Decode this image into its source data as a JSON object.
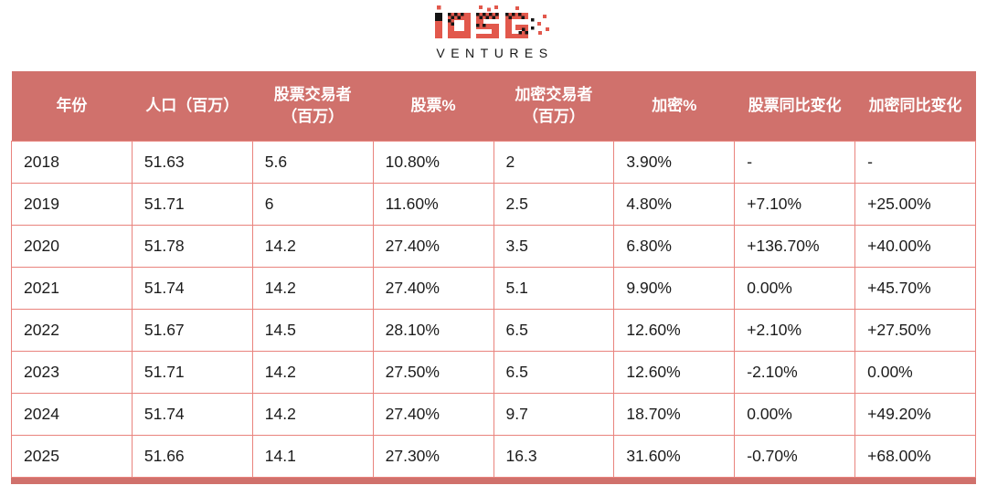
{
  "logo": {
    "brand": "IOSG",
    "subtitle": "VENTURES"
  },
  "colors": {
    "header_bg": "#d0716c",
    "grid_border": "#e9837d",
    "logo_red": "#e2584c",
    "logo_black": "#141414",
    "header_text": "#ffffff",
    "cell_text": "#1c1c1c"
  },
  "chart_data": {
    "type": "table",
    "title": "",
    "columns": [
      "年份",
      "人口（百万）",
      "股票交易者\n（百万）",
      "股票%",
      "加密交易者\n（百万）",
      "加密%",
      "股票同比变化",
      "加密同比变化"
    ],
    "rows": [
      [
        "2018",
        "51.63",
        "5.6",
        "10.80%",
        "2",
        "3.90%",
        "-",
        "-"
      ],
      [
        "2019",
        "51.71",
        "6",
        "11.60%",
        "2.5",
        "4.80%",
        "+7.10%",
        "+25.00%"
      ],
      [
        "2020",
        "51.78",
        "14.2",
        "27.40%",
        "3.5",
        "6.80%",
        "+136.70%",
        "+40.00%"
      ],
      [
        "2021",
        "51.74",
        "14.2",
        "27.40%",
        "5.1",
        "9.90%",
        "0.00%",
        "+45.70%"
      ],
      [
        "2022",
        "51.67",
        "14.5",
        "28.10%",
        "6.5",
        "12.60%",
        "+2.10%",
        "+27.50%"
      ],
      [
        "2023",
        "51.71",
        "14.2",
        "27.50%",
        "6.5",
        "12.60%",
        "-2.10%",
        "0.00%"
      ],
      [
        "2024",
        "51.74",
        "14.2",
        "27.40%",
        "9.7",
        "18.70%",
        "0.00%",
        "+49.20%"
      ],
      [
        "2025",
        "51.66",
        "14.1",
        "27.30%",
        "16.3",
        "31.60%",
        "-0.70%",
        "+68.00%"
      ]
    ]
  }
}
